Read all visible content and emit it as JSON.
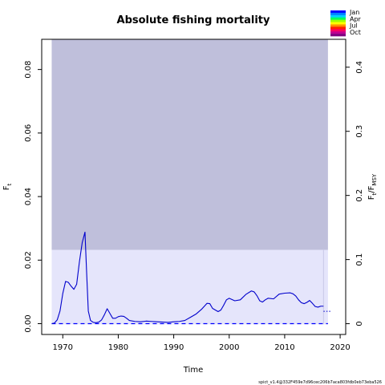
{
  "chart_data": {
    "type": "line",
    "title": "Absolute fishing mortality",
    "xlabel": "Time",
    "ylabel_main": "F",
    "ylabel_main_sub": "t",
    "ylabel_right_parts": [
      "F",
      "t",
      "/F",
      "MSY"
    ],
    "xlim": [
      1966.2,
      2021.0
    ],
    "ylim": [
      -0.0034,
      0.0895
    ],
    "ylim_right": [
      -0.0168,
      0.4435
    ],
    "xticks": [
      1970,
      1980,
      1990,
      2000,
      2010,
      2020
    ],
    "yticks_left": [
      0.0,
      0.02,
      0.04,
      0.06,
      0.08
    ],
    "yticks_left_labels": [
      "0.00",
      "0.02",
      "0.04",
      "0.06",
      "0.08"
    ],
    "yticks_right": [
      0,
      0.1,
      0.2,
      0.3,
      0.4
    ],
    "yticks_right_labels": [
      "0",
      "0.1",
      "0.2",
      "0.3",
      "0.4"
    ],
    "bands": {
      "dark": {
        "x0": 1968.0,
        "x1": 2017.8,
        "y0": 0.0232,
        "y1": 0.0895,
        "color": "#bfbfdb"
      },
      "light": {
        "x0": 1968.0,
        "x1": 2017.8,
        "y0": -0.0002,
        "y1": 0.0232,
        "color": "#e5e5fb"
      }
    },
    "series": [
      {
        "color": "#0000cc",
        "x": [
          1968.0,
          1968.5,
          1969.0,
          1969.5,
          1970.0,
          1970.5,
          1971.0,
          1971.5,
          1972.0,
          1972.5,
          1973.0,
          1973.5,
          1974.0,
          1974.3,
          1974.6,
          1975.0,
          1975.5,
          1976.0,
          1976.5,
          1977.0,
          1977.5,
          1978.0,
          1978.5,
          1979.0,
          1979.5,
          1980.0,
          1980.5,
          1981.0,
          1981.5,
          1982.0,
          1983.0,
          1984.0,
          1985.0,
          1986.0,
          1987.0,
          1988.0,
          1989.0,
          1990.0,
          1991.0,
          1992.0,
          1993.0,
          1994.0,
          1995.0,
          1996.0,
          1996.5,
          1997.0,
          1998.0,
          1998.5,
          1999.0,
          1999.5,
          2000.0,
          2001.0,
          2002.0,
          2003.0,
          2004.0,
          2004.5,
          2005.0,
          2005.5,
          2006.0,
          2006.5,
          2007.0,
          2008.0,
          2009.0,
          2010.0,
          2011.0,
          2011.5,
          2012.0,
          2012.5,
          2013.0,
          2013.5,
          2014.0,
          2014.5,
          2015.0,
          2015.5,
          2016.0,
          2016.5,
          2017.0
        ],
        "y": [
          0.0,
          0.0002,
          0.0012,
          0.004,
          0.0095,
          0.0133,
          0.013,
          0.0118,
          0.0108,
          0.0124,
          0.0195,
          0.0255,
          0.0288,
          0.016,
          0.004,
          0.001,
          0.0004,
          0.0003,
          0.0005,
          0.0012,
          0.0028,
          0.0047,
          0.0032,
          0.0017,
          0.0017,
          0.0022,
          0.0024,
          0.0023,
          0.0017,
          0.001,
          0.0007,
          0.0006,
          0.0008,
          0.0007,
          0.0006,
          0.0005,
          0.0004,
          0.0006,
          0.0007,
          0.001,
          0.002,
          0.003,
          0.0045,
          0.0064,
          0.0063,
          0.0048,
          0.0038,
          0.0043,
          0.0058,
          0.0075,
          0.008,
          0.0072,
          0.0075,
          0.0092,
          0.0103,
          0.01,
          0.0088,
          0.0072,
          0.0068,
          0.0075,
          0.008,
          0.0078,
          0.0093,
          0.0096,
          0.0097,
          0.0094,
          0.0087,
          0.0075,
          0.0066,
          0.0063,
          0.0067,
          0.0073,
          0.0064,
          0.0054,
          0.0052,
          0.0055,
          0.0055
        ]
      }
    ],
    "forecast": {
      "x": [
        2017.0,
        2018.5
      ],
      "y": [
        0.0039,
        0.0039
      ],
      "style": "dotted"
    },
    "reference_line": {
      "y": 0.0,
      "style": "dashed",
      "color": "#0000ff"
    },
    "vertical_line": {
      "x": 2017.0,
      "color": "#c8c8e6"
    },
    "legend": {
      "labels": [
        "Jan",
        "Apr",
        "Jul",
        "Oct"
      ],
      "colors": [
        "#0000ff",
        "#0080ff",
        "#00d0ff",
        "#00ff60",
        "#a0ff00",
        "#ffff00",
        "#ff9000",
        "#ff2000",
        "#ff0060",
        "#c00090",
        "#800080"
      ],
      "placement": "top-right"
    },
    "footer": "spict_v1.4@332F459e7d96cec206b7aca803fdb0eb73eba526"
  }
}
